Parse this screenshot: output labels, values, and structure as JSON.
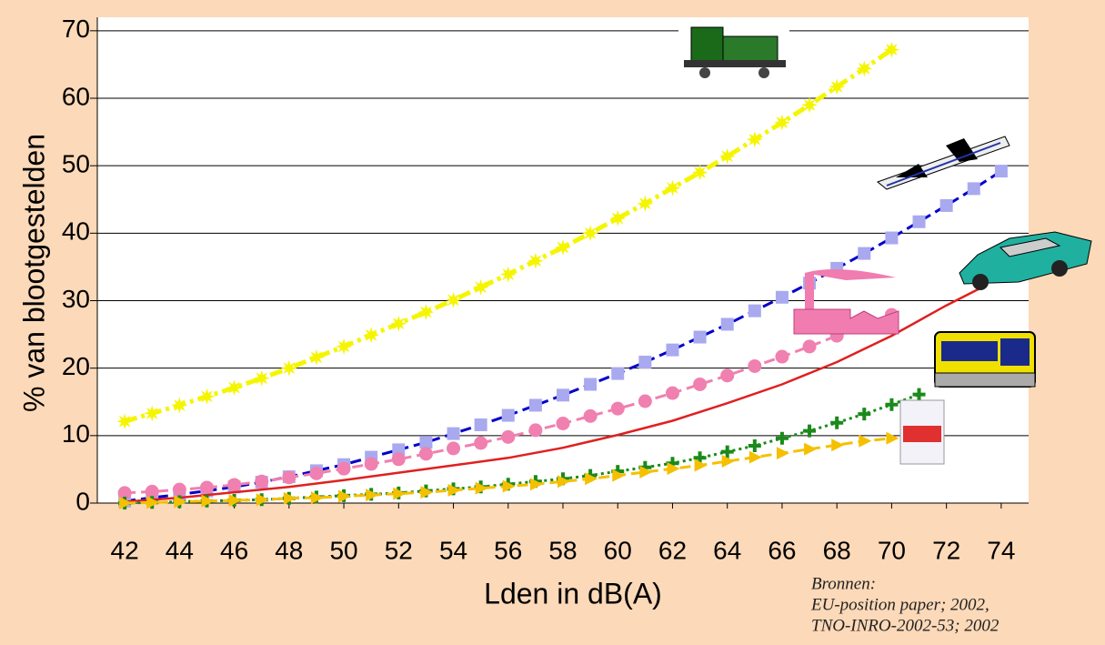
{
  "chart_data": {
    "type": "line",
    "xlabel": "Lden in dB(A)",
    "ylabel": "% van blootgestelden",
    "source": [
      "Bronnen:",
      "EU-position paper; 2002,",
      "TNO-INRO-2002-53; 2002"
    ],
    "xlim": [
      41,
      75
    ],
    "ylim": [
      0,
      72
    ],
    "xticks": [
      42,
      44,
      46,
      48,
      50,
      52,
      54,
      56,
      58,
      60,
      62,
      64,
      66,
      68,
      70,
      72,
      74
    ],
    "yticks": [
      0,
      10,
      20,
      30,
      40,
      50,
      60,
      70
    ],
    "grid": true,
    "series": [
      {
        "color": "#f5f500",
        "linestyle": "dashdot",
        "marker": "star",
        "x": [
          42,
          43,
          44,
          45,
          46,
          47,
          48,
          49,
          50,
          51,
          52,
          53,
          54,
          55,
          56,
          57,
          58,
          59,
          60,
          61,
          62,
          63,
          64,
          65,
          66,
          67,
          68,
          69,
          70
        ],
        "values": [
          12.1,
          13.3,
          14.5,
          15.8,
          17.1,
          18.5,
          20.0,
          21.6,
          23.2,
          24.9,
          26.6,
          28.3,
          30.1,
          32.0,
          33.9,
          35.9,
          37.9,
          40.0,
          42.2,
          44.4,
          46.7,
          49.0,
          51.4,
          53.9,
          56.4,
          59.0,
          61.7,
          64.4,
          67.2
        ]
      },
      {
        "color": "#0000cc",
        "marker_color": "#a9a9f0",
        "linestyle": "dashed",
        "marker": "square",
        "x": [
          42,
          43,
          44,
          45,
          46,
          47,
          48,
          49,
          50,
          51,
          52,
          53,
          54,
          55,
          56,
          57,
          58,
          59,
          60,
          61,
          62,
          63,
          64,
          65,
          66,
          67,
          68,
          69,
          70,
          71,
          72,
          73,
          74
        ],
        "values": [
          0.3,
          0.8,
          1.3,
          1.8,
          2.4,
          3.1,
          3.9,
          4.8,
          5.7,
          6.8,
          7.9,
          9.0,
          10.3,
          11.6,
          13.0,
          14.5,
          16.0,
          17.6,
          19.2,
          20.9,
          22.7,
          24.6,
          26.5,
          28.5,
          30.5,
          32.6,
          34.8,
          37.0,
          39.3,
          41.7,
          44.1,
          46.6,
          49.2
        ]
      },
      {
        "color": "#f080b0",
        "linestyle": "dashed",
        "marker": "circle",
        "x": [
          42,
          43,
          44,
          45,
          46,
          47,
          48,
          49,
          50,
          51,
          52,
          53,
          54,
          55,
          56,
          57,
          58,
          59,
          60,
          61,
          62,
          63,
          64,
          65,
          66,
          67,
          68,
          69,
          70
        ],
        "values": [
          1.5,
          1.7,
          2.0,
          2.3,
          2.7,
          3.2,
          3.8,
          4.4,
          5.1,
          5.8,
          6.5,
          7.3,
          8.1,
          8.9,
          9.8,
          10.8,
          11.8,
          12.9,
          14.0,
          15.1,
          16.3,
          17.6,
          18.9,
          20.3,
          21.7,
          23.2,
          24.8,
          26.3,
          27.9
        ]
      },
      {
        "color": "#e02020",
        "linestyle": "solid",
        "marker": "none",
        "x": [
          42,
          44,
          46,
          48,
          50,
          52,
          54,
          56,
          58,
          60,
          62,
          64,
          66,
          68,
          70,
          72,
          73.5
        ],
        "values": [
          0.2,
          0.8,
          1.6,
          2.4,
          3.4,
          4.5,
          5.6,
          6.7,
          8.2,
          10.1,
          12.2,
          14.8,
          17.6,
          20.9,
          24.8,
          29.3,
          32.4
        ]
      },
      {
        "color": "#1a8a1a",
        "linestyle": "dotted",
        "marker": "plus",
        "x": [
          42,
          43,
          44,
          45,
          46,
          47,
          48,
          49,
          50,
          51,
          52,
          53,
          54,
          55,
          56,
          57,
          58,
          59,
          60,
          61,
          62,
          63,
          64,
          65,
          66,
          67,
          68,
          69,
          70,
          71
        ],
        "values": [
          0,
          0.1,
          0.2,
          0.3,
          0.4,
          0.5,
          0.7,
          0.9,
          1.1,
          1.3,
          1.5,
          1.8,
          2.1,
          2.4,
          2.8,
          3.2,
          3.6,
          4.1,
          4.7,
          5.3,
          5.9,
          6.7,
          7.6,
          8.5,
          9.6,
          10.7,
          11.9,
          13.2,
          14.6,
          16.1
        ]
      },
      {
        "color": "#f5c000",
        "linestyle": "dashed",
        "marker": "triangle",
        "x": [
          42,
          43,
          44,
          45,
          46,
          47,
          48,
          49,
          50,
          51,
          52,
          53,
          54,
          55,
          56,
          57,
          58,
          59,
          60,
          61,
          62,
          63,
          64,
          65,
          66,
          67,
          68,
          69,
          70
        ],
        "values": [
          0,
          0.1,
          0.2,
          0.3,
          0.4,
          0.5,
          0.7,
          0.8,
          1.0,
          1.2,
          1.4,
          1.6,
          1.9,
          2.2,
          2.5,
          2.8,
          3.2,
          3.6,
          4.1,
          4.6,
          5.1,
          5.6,
          6.2,
          6.8,
          7.4,
          8.0,
          8.6,
          9.2,
          9.6
        ]
      }
    ]
  }
}
